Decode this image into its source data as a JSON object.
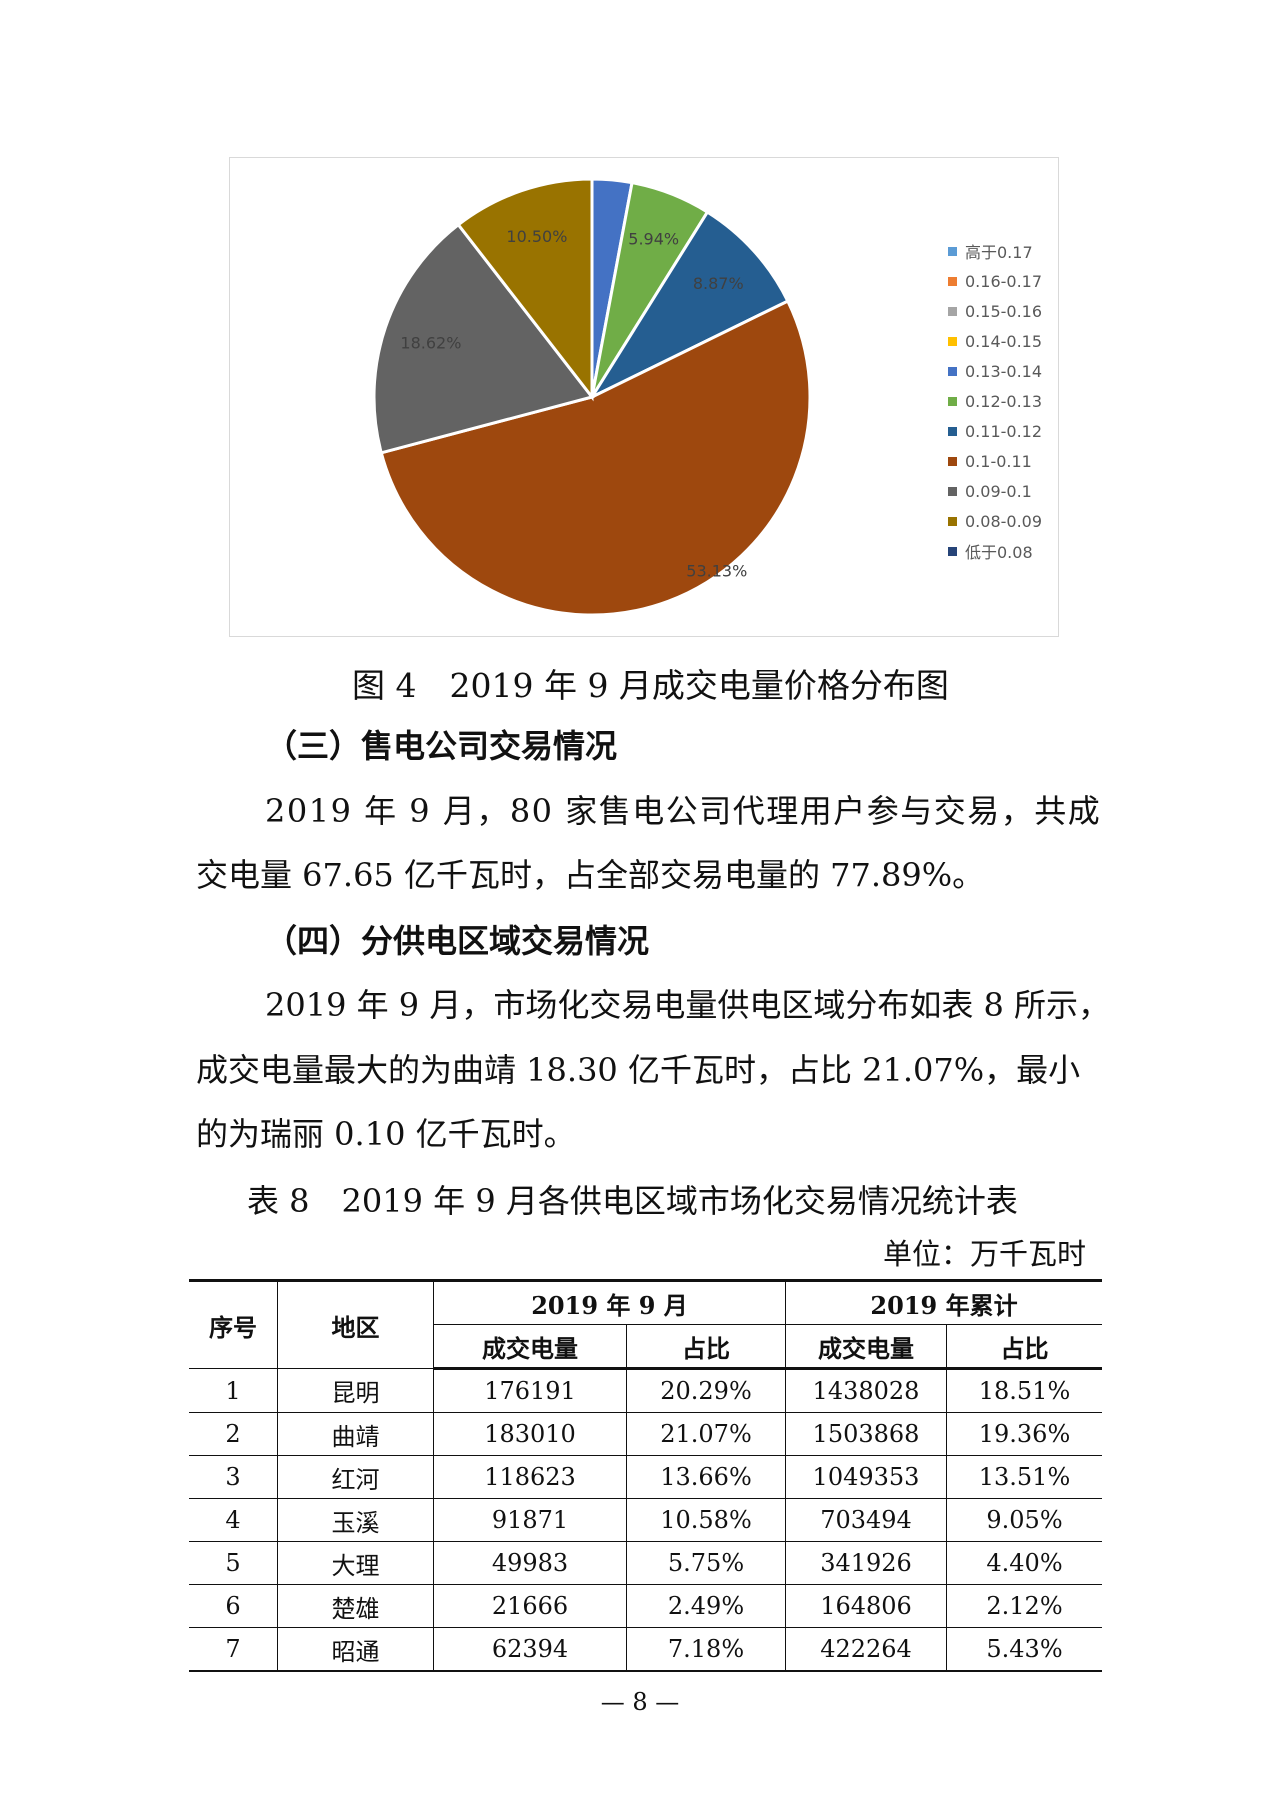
{
  "chart_data": {
    "type": "pie",
    "start_angle": "12 o'clock, clockwise",
    "legend_position": "right",
    "slices": [
      {
        "name": "高于0.17",
        "value": 0,
        "color": "#5B9BD5",
        "label": ""
      },
      {
        "name": "0.16-0.17",
        "value": 0,
        "color": "#ED7D31",
        "label": ""
      },
      {
        "name": "0.15-0.16",
        "value": 0,
        "color": "#A5A5A5",
        "label": ""
      },
      {
        "name": "0.14-0.15",
        "value": 0,
        "color": "#FFC000",
        "label": ""
      },
      {
        "name": "0.13-0.14",
        "value": 2.94,
        "color": "#4472C4",
        "label": ""
      },
      {
        "name": "0.12-0.13",
        "value": 5.94,
        "color": "#70AD47",
        "label": "5.94%"
      },
      {
        "name": "0.11-0.12",
        "value": 8.87,
        "color": "#255E91",
        "label": "8.87%"
      },
      {
        "name": "0.1-0.11",
        "value": 53.13,
        "color": "#9E480E",
        "label": "53.13%"
      },
      {
        "name": "0.09-0.1",
        "value": 18.62,
        "color": "#636363",
        "label": "18.62%"
      },
      {
        "name": "0.08-0.09",
        "value": 10.5,
        "color": "#997300",
        "label": "10.50%"
      },
      {
        "name": "低于0.08",
        "value": 0,
        "color": "#264478",
        "label": ""
      }
    ]
  },
  "figure_caption": "图 4　2019 年 9 月成交电量价格分布图",
  "section3": {
    "heading": "（三）售电公司交易情况",
    "lines": [
      "2019 年 9 月，80 家售电公司代理用户参与交易，共成",
      "交电量 67.65 亿千瓦时，占全部交易电量的 77.89%。"
    ]
  },
  "section4": {
    "heading": "（四）分供电区域交易情况",
    "lines": [
      "2019 年 9 月，市场化交易电量供电区域分布如表 8 所示，",
      "成交电量最大的为曲靖 18.30 亿千瓦时，占比 21.07%，最小",
      "的为瑞丽 0.10 亿千瓦时。"
    ]
  },
  "table": {
    "caption": "表 8　2019 年 9 月各供电区域市场化交易情况统计表",
    "unit": "单位：万千瓦时",
    "headers": {
      "no": "序号",
      "region": "地区",
      "month": "2019 年 9 月",
      "ytd": "2019 年累计",
      "volume": "成交电量",
      "share": "占比"
    },
    "rows": [
      [
        "1",
        "昆明",
        "176191",
        "20.29%",
        "1438028",
        "18.51%"
      ],
      [
        "2",
        "曲靖",
        "183010",
        "21.07%",
        "1503868",
        "19.36%"
      ],
      [
        "3",
        "红河",
        "118623",
        "13.66%",
        "1049353",
        "13.51%"
      ],
      [
        "4",
        "玉溪",
        "91871",
        "10.58%",
        "703494",
        "9.05%"
      ],
      [
        "5",
        "大理",
        "49983",
        "5.75%",
        "341926",
        "4.40%"
      ],
      [
        "6",
        "楚雄",
        "21666",
        "2.49%",
        "164806",
        "2.12%"
      ],
      [
        "7",
        "昭通",
        "62394",
        "7.18%",
        "422264",
        "5.43%"
      ]
    ]
  },
  "page_number": "— 8 —"
}
